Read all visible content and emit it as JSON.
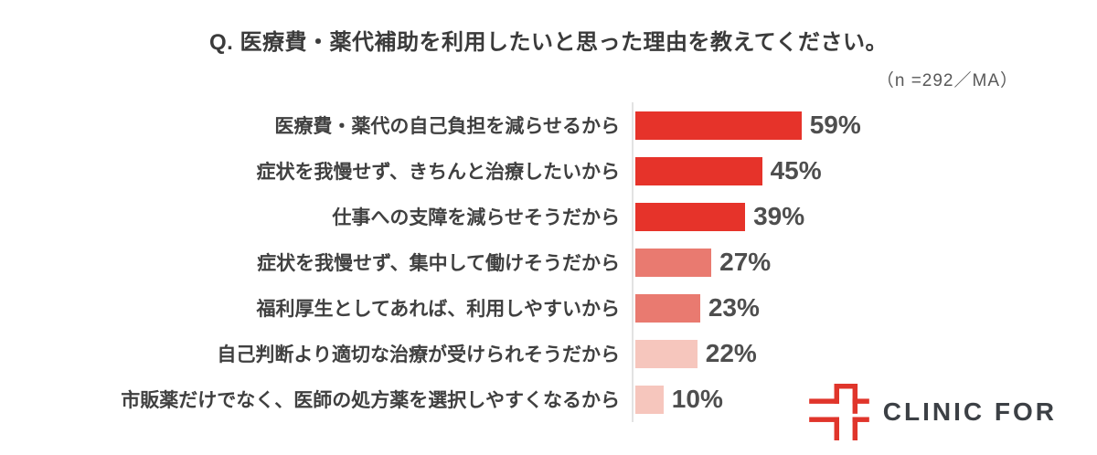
{
  "title": "Q. 医療費・薬代補助を利用したいと思った理由を教えてください。",
  "sample_note": "（n =292／MA）",
  "chart_data": {
    "type": "bar",
    "orientation": "horizontal",
    "title": "Q. 医療費・薬代補助を利用したいと思った理由を教えてください。",
    "subtitle": "（n =292／MA）",
    "categories": [
      "医療費・薬代の自己負担を減らせるから",
      "症状を我慢せず、きちんと治療したいから",
      "仕事への支障を減らせそうだから",
      "症状を我慢せず、集中して働けそうだから",
      "福利厚生としてあれば、利用しやすいから",
      "自己判断より適切な治療が受けられそうだから",
      "市販薬だけでなく、医師の処方薬を選択しやすくなるから"
    ],
    "values": [
      59,
      45,
      39,
      27,
      23,
      22,
      10
    ],
    "value_suffix": "%",
    "bar_colors": [
      "#E6332A",
      "#E6332A",
      "#E6332A",
      "#E97A70",
      "#E97A70",
      "#F6C6BD",
      "#F6C6BD"
    ],
    "xlim": [
      0,
      100
    ],
    "grid": false,
    "axis_line_color": "#E3E3E3",
    "value_label_color": "#4E4E4E",
    "category_label_color": "#404040"
  },
  "logo": {
    "brand": "CLINIC FOR",
    "icon": "clinic-for-cross-icon",
    "icon_color": "#E0352B",
    "text_color": "#3C4045"
  }
}
